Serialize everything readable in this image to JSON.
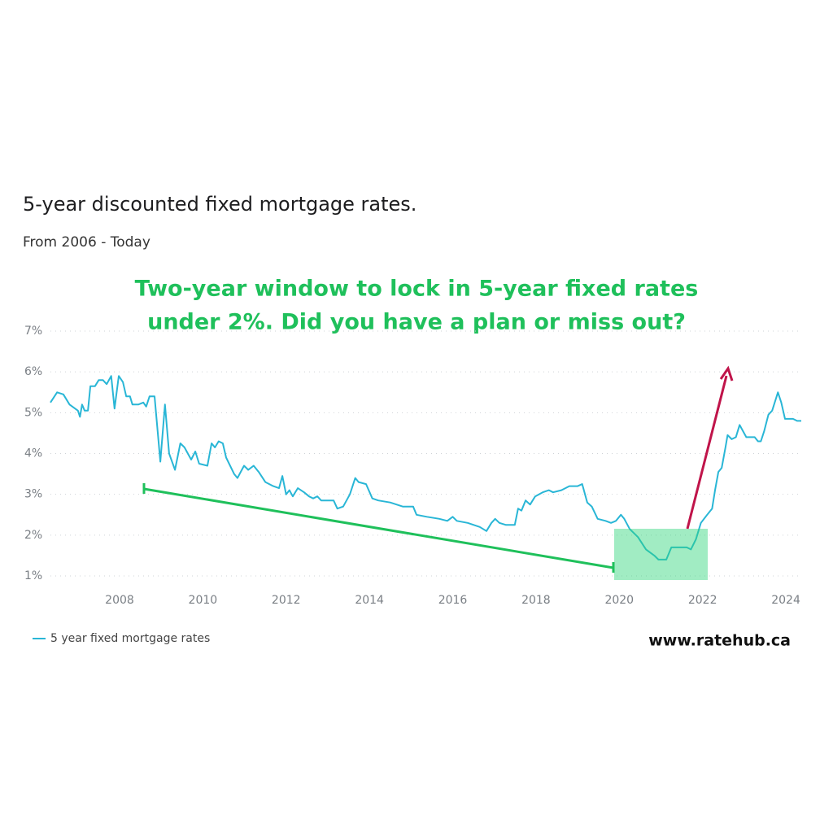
{
  "chart_data": {
    "type": "line",
    "title": "5-year discounted fixed mortgage rates.",
    "subtitle": "From 2006 - Today",
    "annotation": [
      "Two-year window to lock in 5-year fixed rates",
      "under 2%. Did you have a plan or miss out?"
    ],
    "watermark": "www.ratehub.ca",
    "xlim": [
      2006.34,
      2024.37
    ],
    "xticks": [
      2008,
      2010,
      2012,
      2014,
      2016,
      2018,
      2020,
      2022,
      2024
    ],
    "ylim": [
      1,
      7
    ],
    "yticks": [
      {
        "value": 1,
        "label": "1%"
      },
      {
        "value": 2,
        "label": "2%"
      },
      {
        "value": 3,
        "label": "3%"
      },
      {
        "value": 4,
        "label": "4%"
      },
      {
        "value": 5,
        "label": "5%"
      },
      {
        "value": 6,
        "label": "6%"
      },
      {
        "value": 7,
        "label": "7%"
      }
    ],
    "grid": true,
    "legend": "bottom-left",
    "x": [
      2006.34,
      2006.5,
      2006.65,
      2006.8,
      2007.0,
      2007.05,
      2007.1,
      2007.16,
      2007.24,
      2007.3,
      2007.41,
      2007.5,
      2007.6,
      2007.69,
      2007.8,
      2007.88,
      2007.98,
      2008.08,
      2008.16,
      2008.25,
      2008.31,
      2008.45,
      2008.57,
      2008.64,
      2008.72,
      2008.84,
      2008.98,
      2009.09,
      2009.19,
      2009.33,
      2009.46,
      2009.56,
      2009.72,
      2009.82,
      2009.91,
      2010.11,
      2010.21,
      2010.29,
      2010.38,
      2010.48,
      2010.56,
      2010.75,
      2010.83,
      2010.99,
      2011.09,
      2011.22,
      2011.34,
      2011.5,
      2011.69,
      2011.83,
      2011.91,
      2012.0,
      2012.08,
      2012.16,
      2012.28,
      2012.43,
      2012.55,
      2012.65,
      2012.75,
      2012.84,
      2013.14,
      2013.23,
      2013.37,
      2013.53,
      2013.66,
      2013.74,
      2013.92,
      2014.07,
      2014.21,
      2014.5,
      2014.8,
      2015.05,
      2015.13,
      2015.38,
      2015.68,
      2015.87,
      2016.0,
      2016.1,
      2016.36,
      2016.65,
      2016.81,
      2016.93,
      2017.02,
      2017.12,
      2017.28,
      2017.49,
      2017.57,
      2017.65,
      2017.75,
      2017.86,
      2017.98,
      2018.16,
      2018.31,
      2018.41,
      2018.61,
      2018.8,
      2019.0,
      2019.11,
      2019.23,
      2019.34,
      2019.48,
      2019.67,
      2019.8,
      2019.92,
      2020.04,
      2020.12,
      2020.25,
      2020.45,
      2020.64,
      2020.84,
      2020.94,
      2021.13,
      2021.25,
      2021.62,
      2021.72,
      2021.84,
      2021.96,
      2022.11,
      2022.23,
      2022.3,
      2022.38,
      2022.46,
      2022.55,
      2022.6,
      2022.7,
      2022.8,
      2022.89,
      2023.05,
      2023.25,
      2023.33,
      2023.4,
      2023.48,
      2023.58,
      2023.67,
      2023.81,
      2023.89,
      2023.98,
      2024.17,
      2024.27,
      2024.37
    ],
    "series": [
      {
        "name": "5 year fixed mortgage rates",
        "color": "#29b6d6",
        "values": [
          5.25,
          5.5,
          5.45,
          5.2,
          5.05,
          4.9,
          5.2,
          5.05,
          5.05,
          5.65,
          5.65,
          5.8,
          5.8,
          5.7,
          5.9,
          5.1,
          5.9,
          5.75,
          5.4,
          5.4,
          5.2,
          5.2,
          5.25,
          5.15,
          5.4,
          5.4,
          3.8,
          5.2,
          4.0,
          3.6,
          4.25,
          4.15,
          3.85,
          4.05,
          3.75,
          3.7,
          4.25,
          4.15,
          4.3,
          4.25,
          3.9,
          3.5,
          3.4,
          3.7,
          3.6,
          3.7,
          3.55,
          3.3,
          3.2,
          3.15,
          3.45,
          3.0,
          3.1,
          2.95,
          3.15,
          3.05,
          2.95,
          2.9,
          2.95,
          2.85,
          2.85,
          2.65,
          2.7,
          3.0,
          3.4,
          3.3,
          3.25,
          2.9,
          2.85,
          2.8,
          2.7,
          2.7,
          2.5,
          2.45,
          2.4,
          2.35,
          2.45,
          2.35,
          2.3,
          2.2,
          2.1,
          2.3,
          2.4,
          2.3,
          2.25,
          2.25,
          2.65,
          2.6,
          2.85,
          2.75,
          2.95,
          3.05,
          3.1,
          3.05,
          3.1,
          3.2,
          3.2,
          3.25,
          2.8,
          2.7,
          2.4,
          2.35,
          2.3,
          2.35,
          2.5,
          2.4,
          2.15,
          1.95,
          1.65,
          1.5,
          1.4,
          1.4,
          1.7,
          1.7,
          1.65,
          1.9,
          2.3,
          2.5,
          2.65,
          3.1,
          3.55,
          3.65,
          4.15,
          4.45,
          4.35,
          4.4,
          4.7,
          4.4,
          4.4,
          4.3,
          4.3,
          4.55,
          4.95,
          5.05,
          5.5,
          5.25,
          4.85,
          4.85,
          4.8,
          4.8
        ]
      }
    ]
  }
}
